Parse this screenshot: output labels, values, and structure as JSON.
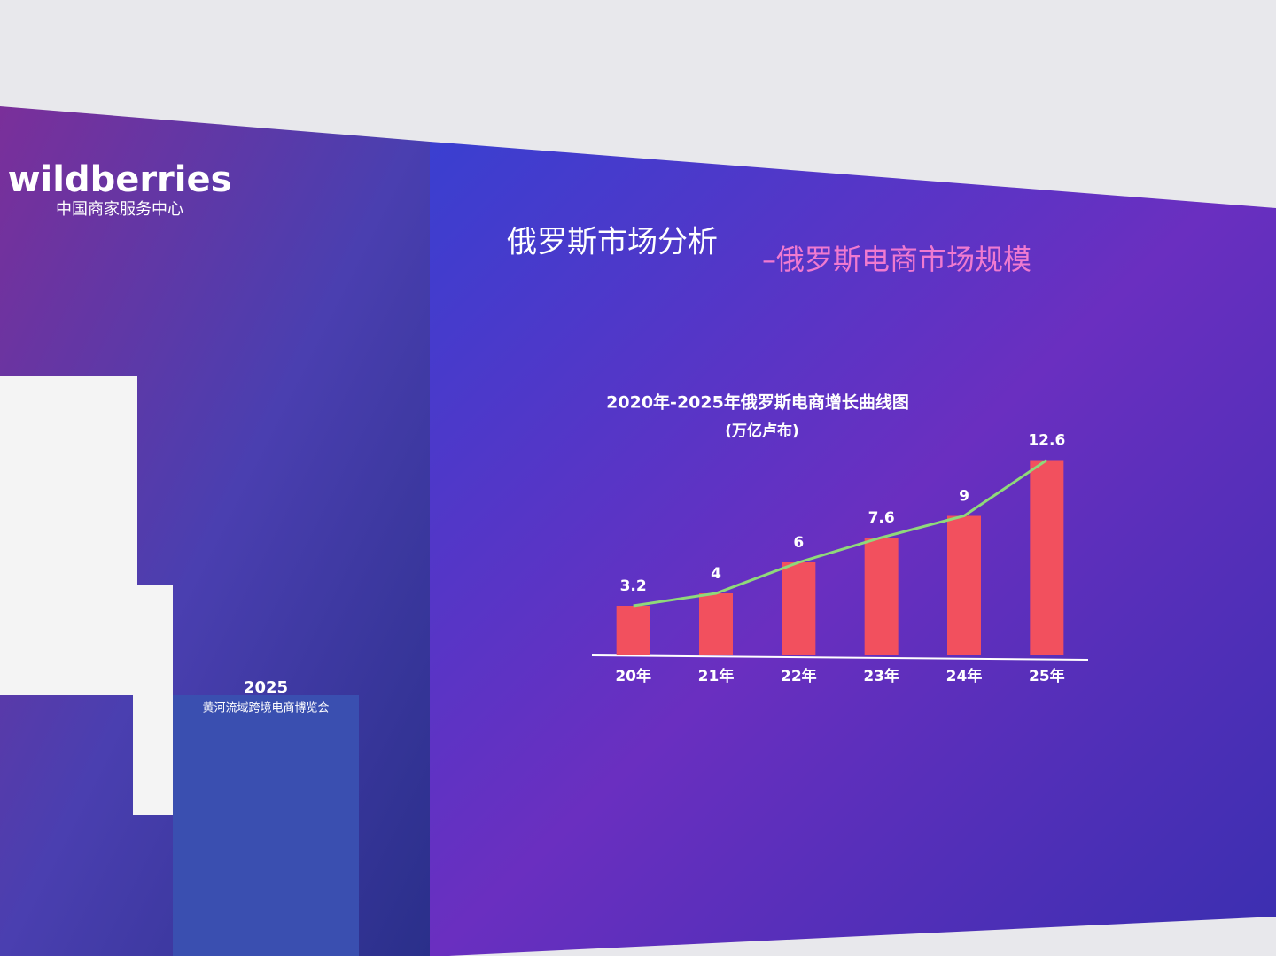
{
  "logo": {
    "brand": "wildberries",
    "subtitle": "中国商家服务中心"
  },
  "slide_title": {
    "main": "俄罗斯市场分析",
    "sub": "–俄罗斯电商市场规模"
  },
  "podium": {
    "year": "2025",
    "name": "黄河流域跨境电商博览会"
  },
  "chart_data": {
    "type": "bar",
    "title": "2020年-2025年俄罗斯电商增长曲线图",
    "subtitle": "(万亿卢布)",
    "categories": [
      "20年",
      "21年",
      "22年",
      "23年",
      "24年",
      "25年"
    ],
    "values": [
      3.2,
      4,
      6,
      7.6,
      9,
      12.6
    ],
    "color": "#f2505e",
    "line_color": "#8fd97a",
    "trend_line": true
  }
}
